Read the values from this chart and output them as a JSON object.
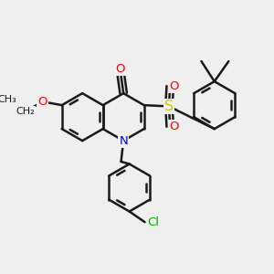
{
  "background_color": "#efefef",
  "bond_color": "#1a1a1a",
  "bond_width": 1.8,
  "atom_colors": {
    "O": "#ff0000",
    "N": "#0000ee",
    "S": "#cccc00",
    "Cl": "#00aa00",
    "C": "#1a1a1a"
  },
  "figsize": [
    3.0,
    3.0
  ],
  "dpi": 100
}
